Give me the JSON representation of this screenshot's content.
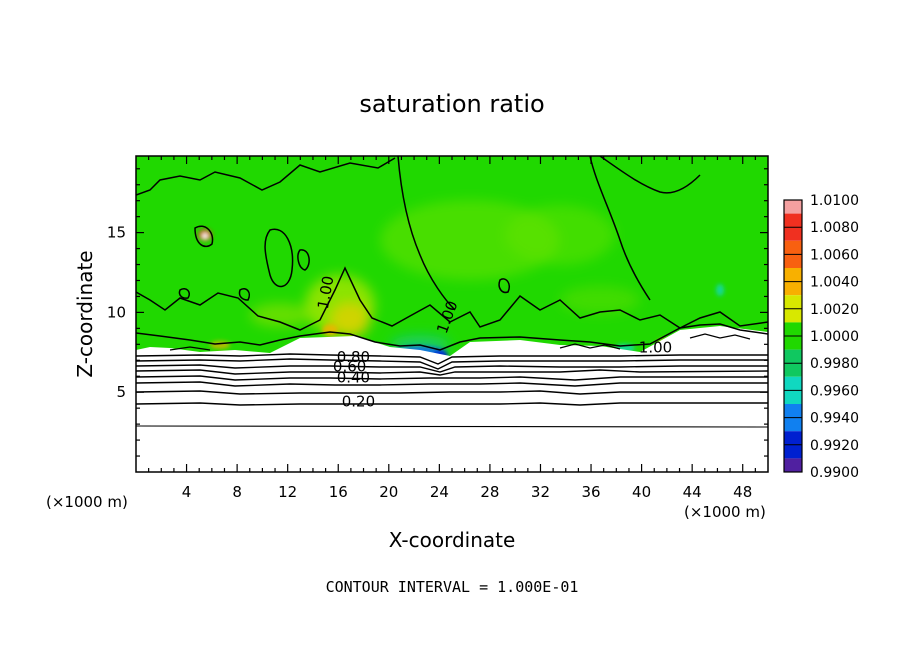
{
  "chart_data": {
    "type": "heatmap",
    "title": "saturation ratio",
    "xlabel": "X-coordinate",
    "ylabel": "Z-coordinate",
    "x_unit": "(×1000 m)",
    "x_unit_right": "(×1000 m)",
    "xlim": [
      0,
      50
    ],
    "ylim": [
      0,
      19.8
    ],
    "xticks": [
      4,
      8,
      12,
      16,
      20,
      24,
      28,
      32,
      36,
      40,
      44,
      48
    ],
    "yticks": [
      5,
      10,
      15
    ],
    "colorbar": {
      "levels": [
        "1.0100",
        "1.0080",
        "1.0060",
        "1.0040",
        "1.0020",
        "1.0000",
        "0.9980",
        "0.9960",
        "0.9940",
        "0.9920",
        "0.9900"
      ],
      "colors": [
        "#f4a0a0",
        "#f03020",
        "#f86010",
        "#f8b000",
        "#d8e800",
        "#20d800",
        "#10c860",
        "#10d8c0",
        "#1080f0",
        "#0020d0",
        "#5020a0"
      ]
    },
    "contour_labels": [
      {
        "text": "1.00",
        "x": 15.4,
        "y": 11.2
      },
      {
        "text": "1.00",
        "x": 25.0,
        "y": 9.6
      },
      {
        "text": "1.00",
        "x": 41.1,
        "y": 7.5
      },
      {
        "text": "0.80",
        "x": 17.2,
        "y": 6.9
      },
      {
        "text": "0.60",
        "x": 16.9,
        "y": 6.3
      },
      {
        "text": "0.40",
        "x": 17.2,
        "y": 5.6
      },
      {
        "text": "0.20",
        "x": 17.6,
        "y": 4.1
      }
    ],
    "footer": "CONTOUR INTERVAL = 1.000E-01"
  }
}
